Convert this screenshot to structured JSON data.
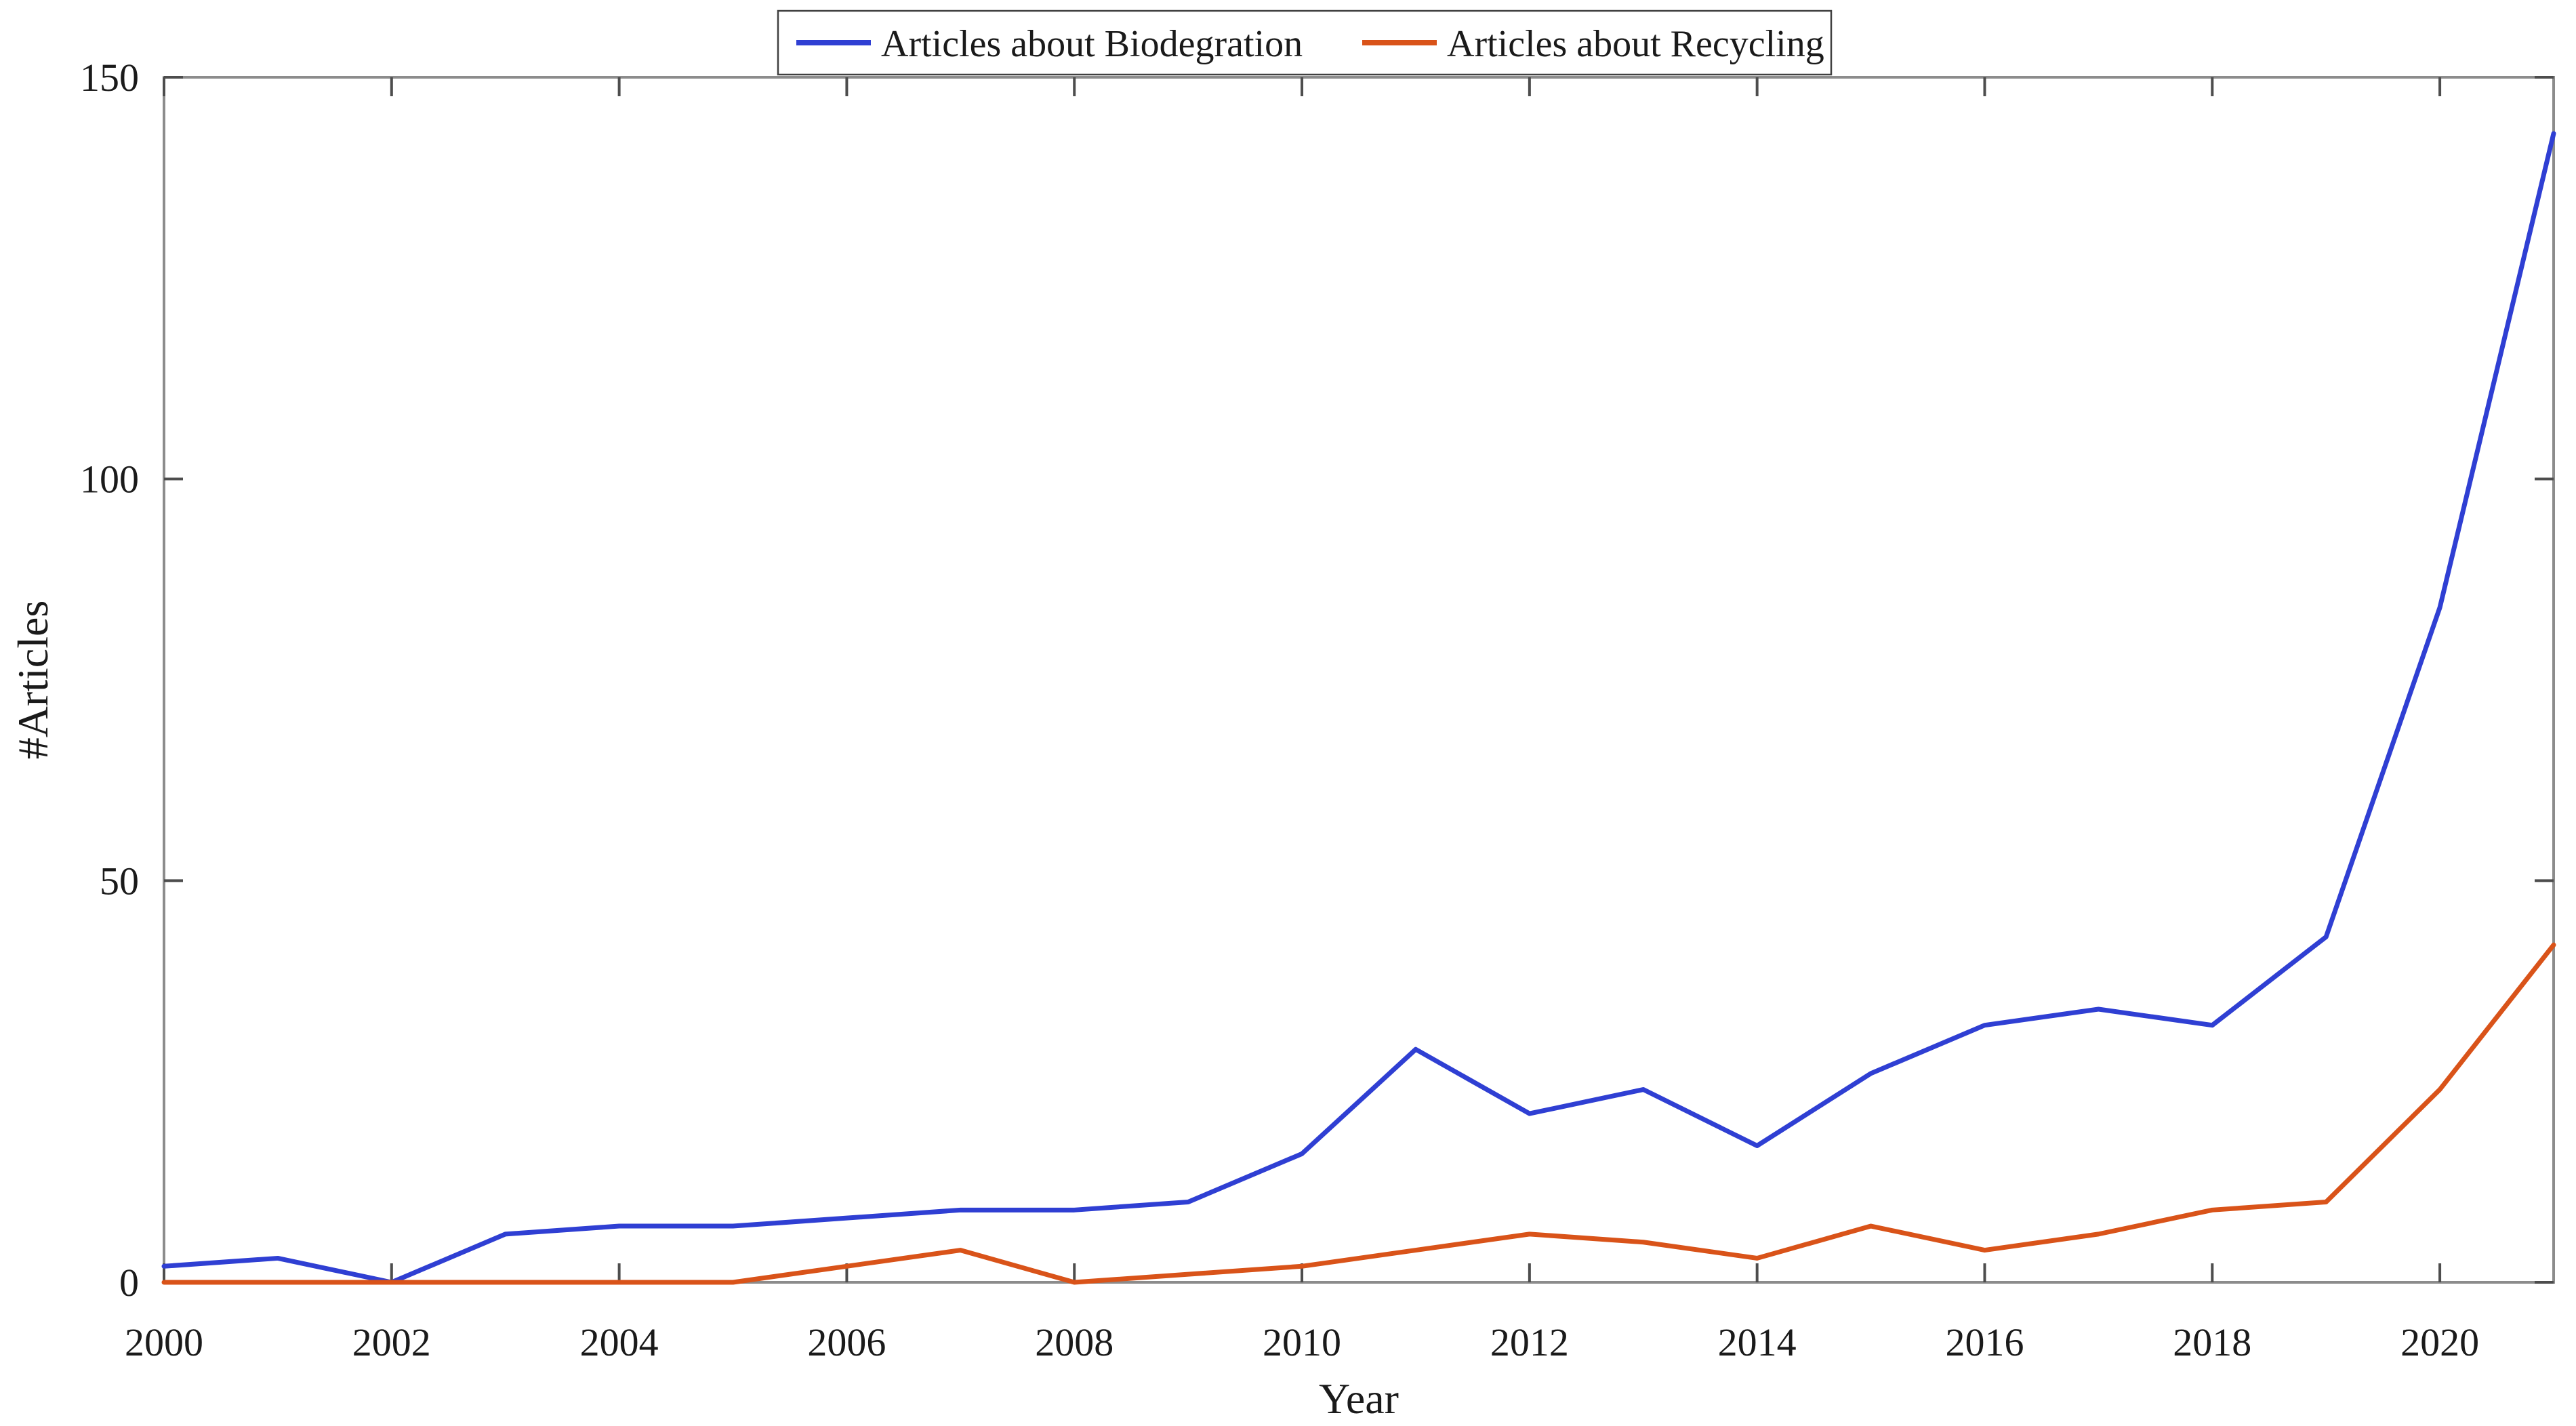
{
  "figure": {
    "background_color": "#ffffff",
    "axis_color": "#8c8c8c",
    "tick_color": "#4d4d4d",
    "text_color": "#1a1a1a"
  },
  "chart_data": {
    "type": "line",
    "title": "",
    "xlabel": "Year",
    "ylabel": "#Articles",
    "x": [
      2000,
      2001,
      2002,
      2003,
      2004,
      2005,
      2006,
      2007,
      2008,
      2009,
      2010,
      2011,
      2012,
      2013,
      2014,
      2015,
      2016,
      2017,
      2018,
      2019,
      2020,
      2021
    ],
    "series": [
      {
        "name": "Articles about Biodegration",
        "color": "#2f3fd3",
        "values": [
          2,
          3,
          0,
          6,
          7,
          7,
          8,
          9,
          9,
          10,
          16,
          29,
          21,
          24,
          17,
          26,
          32,
          34,
          32,
          43,
          84,
          143
        ]
      },
      {
        "name": "Articles about Recycling",
        "color": "#d95319",
        "values": [
          0,
          0,
          0,
          0,
          0,
          0,
          2,
          4,
          0,
          1,
          2,
          4,
          6,
          5,
          3,
          7,
          4,
          6,
          9,
          10,
          24,
          42
        ]
      }
    ],
    "xlim": [
      2000,
      2021
    ],
    "ylim": [
      0,
      150
    ],
    "xticks": [
      2000,
      2002,
      2004,
      2006,
      2008,
      2010,
      2012,
      2014,
      2016,
      2018,
      2020
    ],
    "yticks": [
      0,
      50,
      100,
      150
    ],
    "grid": false,
    "legend_position": "top-center",
    "box": true
  }
}
